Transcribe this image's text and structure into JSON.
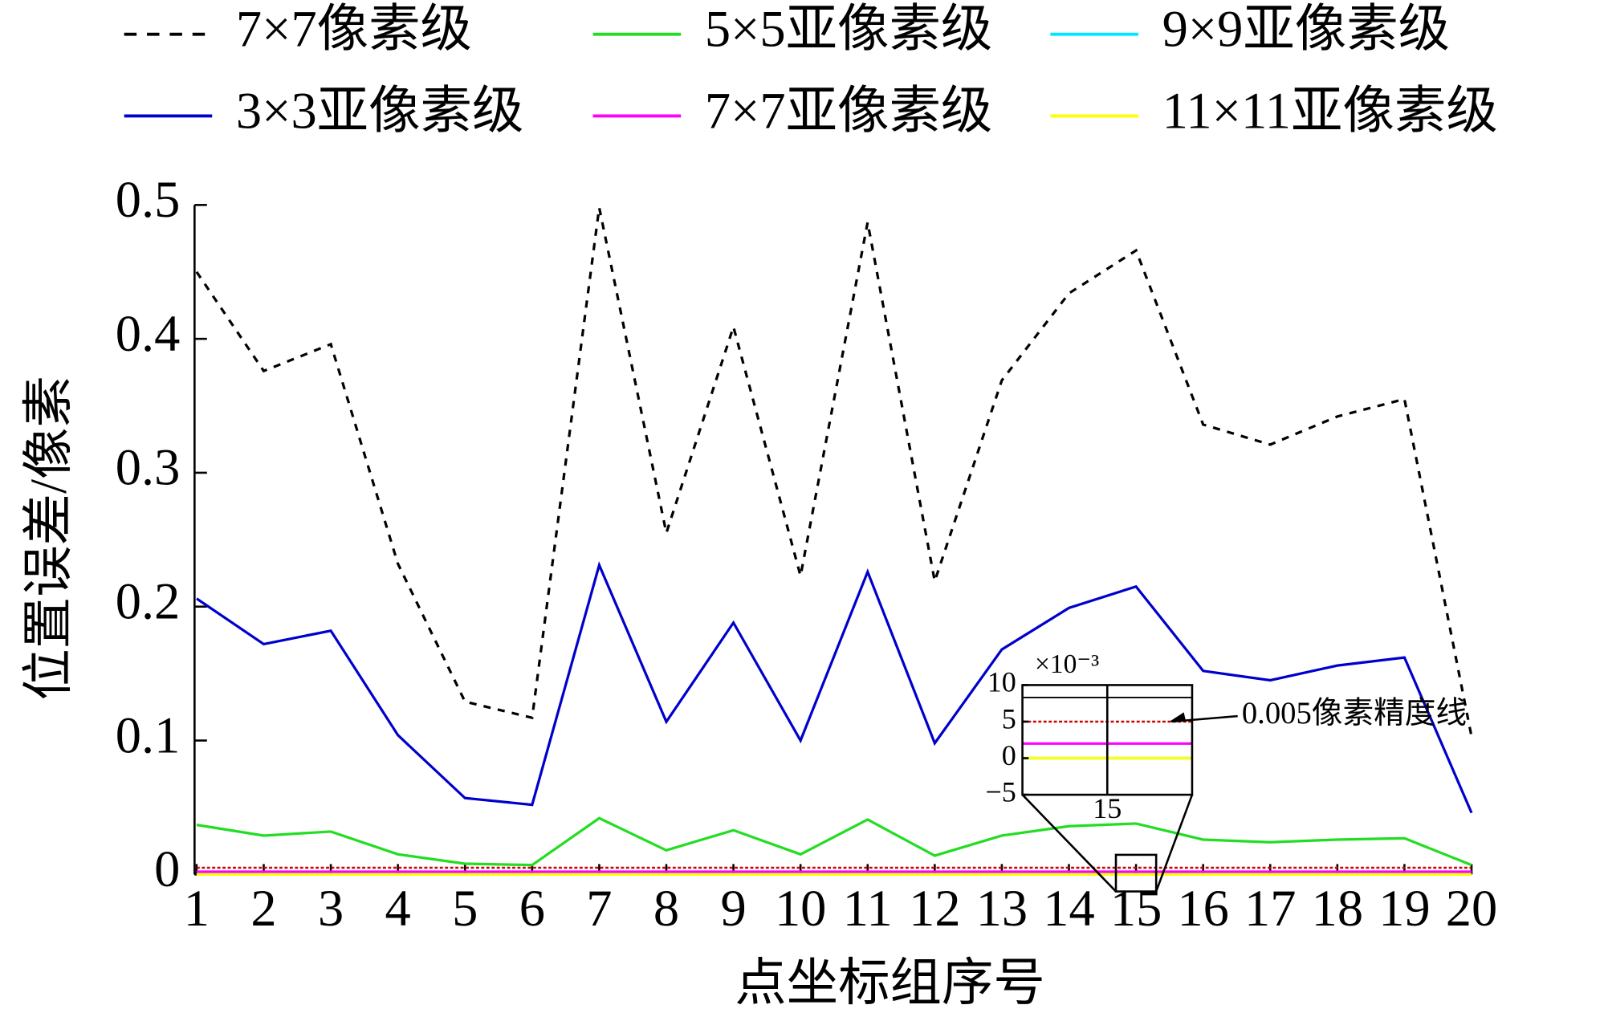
{
  "chart_data": {
    "type": "line",
    "x_label": "点坐标组序号",
    "y_label": "位置误差/像素",
    "x": [
      1,
      2,
      3,
      4,
      5,
      6,
      7,
      8,
      9,
      10,
      11,
      12,
      13,
      14,
      15,
      16,
      17,
      18,
      19,
      20
    ],
    "xlim": [
      1,
      20
    ],
    "xticks": [
      1,
      2,
      3,
      4,
      5,
      6,
      7,
      8,
      9,
      10,
      11,
      12,
      13,
      14,
      15,
      16,
      17,
      18,
      19,
      20
    ],
    "ylim": [
      0,
      0.5
    ],
    "yticks": [
      0,
      0.1,
      0.2,
      0.3,
      0.4,
      0.5
    ],
    "series": [
      {
        "name": "7×7像素级",
        "color": "#000000",
        "dashed": true,
        "values": [
          0.45,
          0.376,
          0.396,
          0.232,
          0.129,
          0.117,
          0.498,
          0.255,
          0.409,
          0.223,
          0.487,
          0.219,
          0.369,
          0.434,
          0.466,
          0.336,
          0.321,
          0.342,
          0.355,
          0.103
        ]
      },
      {
        "name": "3×3亚像素级",
        "color": "#0000cc",
        "values": [
          0.206,
          0.172,
          0.182,
          0.104,
          0.057,
          0.052,
          0.231,
          0.114,
          0.188,
          0.1,
          0.226,
          0.098,
          0.168,
          0.199,
          0.215,
          0.152,
          0.145,
          0.156,
          0.162,
          0.046
        ]
      },
      {
        "name": "5×5亚像素级",
        "color": "#22dd22",
        "values": [
          0.037,
          0.029,
          0.032,
          0.015,
          0.008,
          0.007,
          0.042,
          0.018,
          0.033,
          0.015,
          0.041,
          0.014,
          0.029,
          0.036,
          0.038,
          0.026,
          0.024,
          0.026,
          0.027,
          0.007
        ]
      },
      {
        "name": "7×7亚像素级",
        "color": "#ff00ff",
        "values": [
          0.002,
          0.002,
          0.002,
          0.002,
          0.002,
          0.002,
          0.002,
          0.002,
          0.002,
          0.002,
          0.002,
          0.002,
          0.002,
          0.002,
          0.002,
          0.002,
          0.002,
          0.002,
          0.002,
          0.002
        ]
      },
      {
        "name": "9×9亚像素级",
        "color": "#00e5ff",
        "values": [
          0,
          0,
          0,
          0,
          0,
          0,
          0,
          0,
          0,
          0,
          0,
          0,
          0,
          0,
          0,
          0,
          0,
          0,
          0,
          0
        ]
      },
      {
        "name": "11×11亚像素级",
        "color": "#ffff00",
        "values": [
          0,
          0,
          0,
          0,
          0,
          0,
          0,
          0,
          0,
          0,
          0,
          0,
          0,
          0,
          0,
          0,
          0,
          0,
          0,
          0
        ]
      }
    ],
    "reference_line": {
      "value": 0.005,
      "label": "0.005像素精度线",
      "color": "#cc0000"
    },
    "inset": {
      "xlim": [
        14.7,
        15.3
      ],
      "ylim": [
        -0.005,
        0.01
      ],
      "xticks": [
        15
      ],
      "yticks": [
        {
          "value": 0.01,
          "label": "10"
        },
        {
          "value": 0.005,
          "label": "5"
        },
        0,
        {
          "value": -0.005,
          "label": "−5"
        }
      ],
      "y_multiplier": "×10⁻³"
    }
  }
}
